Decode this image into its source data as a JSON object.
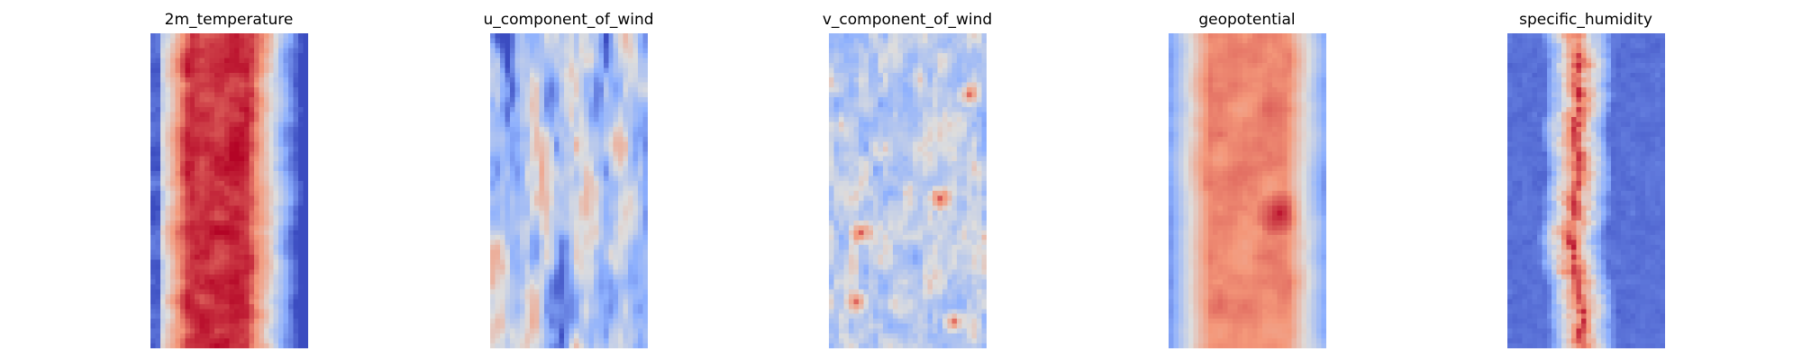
{
  "chart_data": [
    {
      "type": "heatmap",
      "title": "2m_temperature",
      "colormap": "coolwarm",
      "axes_visible": false,
      "grid": false,
      "legend": "none"
    },
    {
      "type": "heatmap",
      "title": "u_component_of_wind",
      "colormap": "coolwarm",
      "axes_visible": false,
      "grid": false,
      "legend": "none"
    },
    {
      "type": "heatmap",
      "title": "v_component_of_wind",
      "colormap": "coolwarm",
      "axes_visible": false,
      "grid": false,
      "legend": "none"
    },
    {
      "type": "heatmap",
      "title": "geopotential",
      "colormap": "coolwarm",
      "axes_visible": false,
      "grid": false,
      "legend": "none"
    },
    {
      "type": "heatmap",
      "title": "specific_humidity",
      "colormap": "coolwarm",
      "axes_visible": false,
      "grid": false,
      "legend": "none"
    }
  ],
  "colors": {
    "cold": "#3b4cc0",
    "neutral": "#dddddd",
    "warm": "#b40426",
    "background": "#ffffff"
  }
}
